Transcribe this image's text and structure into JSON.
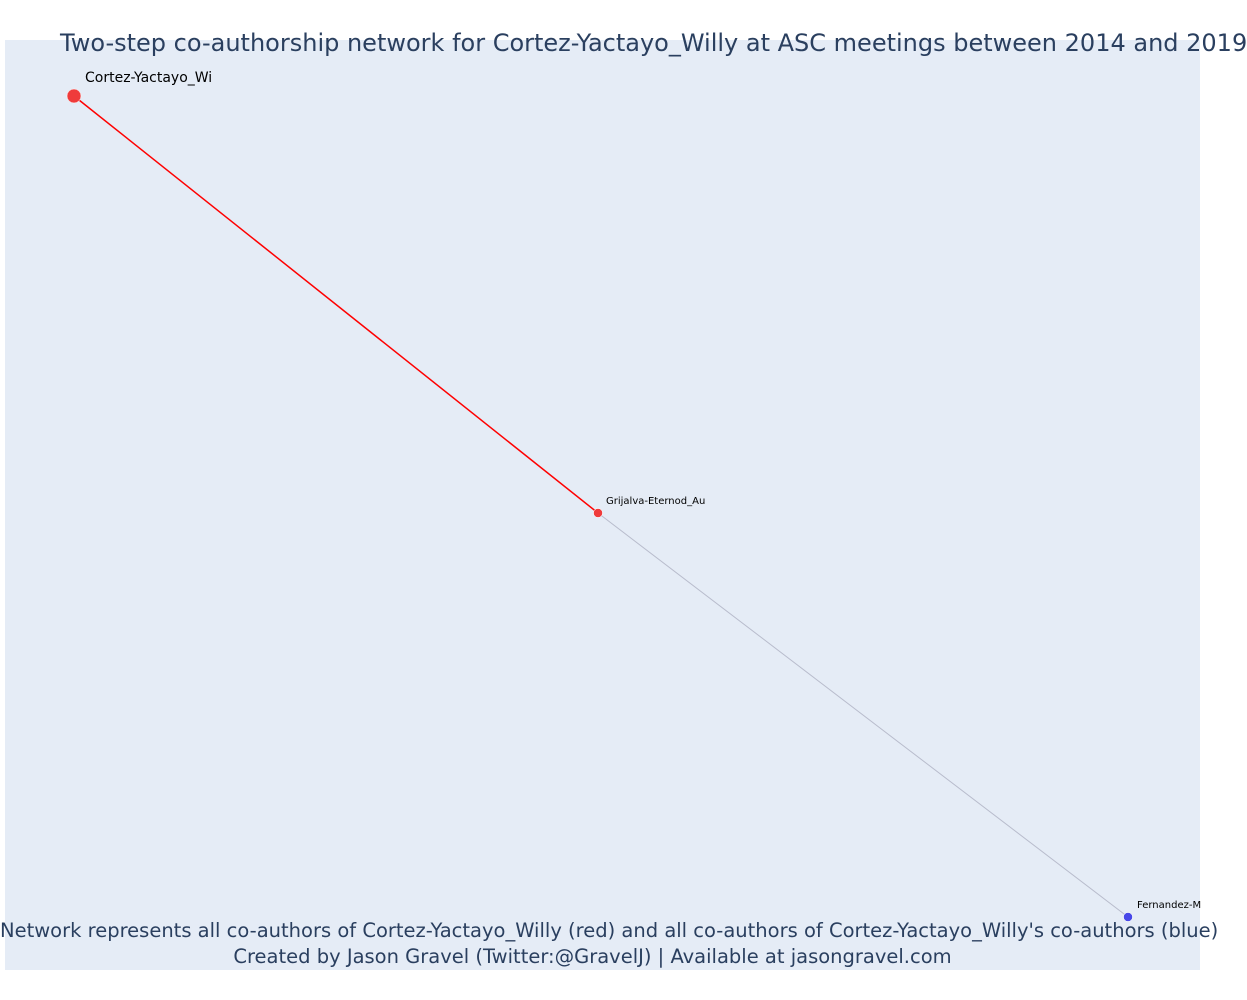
{
  "title": "Two-step co-authorship network for Cortez-Yactayo_Willy at ASC meetings between 2014 and 2019",
  "footer": {
    "line1": "Network represents all co-authors of Cortez-Yactayo_Willy (red) and all co-authors of Cortez-Yactayo_Willy's co-authors (blue)",
    "line2": "Created by Jason Gravel (Twitter:@GravelJ) | Available at jasongravel.com"
  },
  "colors": {
    "plot_background": "#e5ecf6",
    "title_text": "#2a3f5f",
    "focal_node": "#ef3b3b",
    "first_degree": "#ef3b3b",
    "second_degree": "#4747e8",
    "first_edge": "#ff0000",
    "second_edge": "#b8bccc"
  },
  "network": {
    "nodes": [
      {
        "id": "focal",
        "label": "Cortez-Yactayo_Wi",
        "group": "focal"
      },
      {
        "id": "grijalva",
        "label": "Grijalva-Eternod_Au",
        "group": "coauthor"
      },
      {
        "id": "fernandez",
        "label": "Fernandez-M",
        "group": "second-degree"
      }
    ],
    "edges": [
      {
        "source": "focal",
        "target": "grijalva",
        "type": "first"
      },
      {
        "source": "grijalva",
        "target": "fernandez",
        "type": "second"
      }
    ]
  }
}
